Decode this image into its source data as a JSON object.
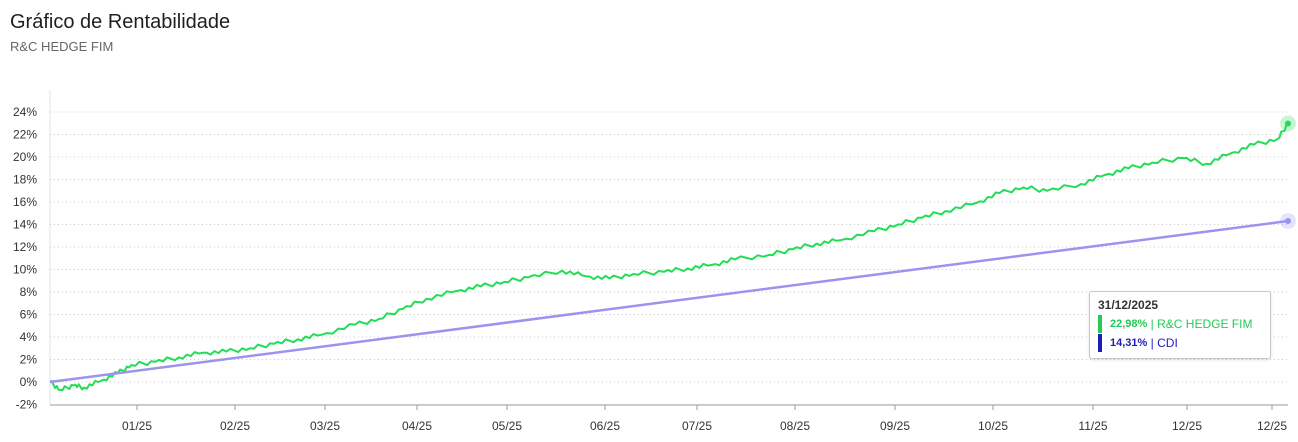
{
  "header": {
    "title": "Gráfico de Rentabilidade",
    "subtitle": "R&C HEDGE FIM"
  },
  "tooltip": {
    "date": "31/12/2025",
    "rows": [
      {
        "value": "22,98%",
        "sep": " | ",
        "name": "R&C HEDGE FIM",
        "color": "#22cc55"
      },
      {
        "value": "14,31%",
        "sep": " | ",
        "name": "CDI",
        "color": "#1d1db8"
      }
    ]
  },
  "chart_data": {
    "type": "line",
    "y_ticks": [
      "24%",
      "22%",
      "20%",
      "18%",
      "16%",
      "14%",
      "12%",
      "10%",
      "8%",
      "6%",
      "4%",
      "2%",
      "0%",
      "-2%"
    ],
    "x_ticks": [
      "01/25",
      "02/25",
      "03/25",
      "04/25",
      "05/25",
      "06/25",
      "07/25",
      "08/25",
      "09/25",
      "10/25",
      "11/25",
      "12/25",
      "12/25"
    ],
    "ylim": [
      -2,
      24
    ],
    "grid": true,
    "series": [
      {
        "name": "R&C HEDGE FIM",
        "color": "#22dd55",
        "points": [
          [
            "2024-12-31",
            0.0
          ],
          [
            "2025-01-03",
            -0.7
          ],
          [
            "2025-01-07",
            -0.3
          ],
          [
            "2025-01-10",
            -0.5
          ],
          [
            "2025-01-15",
            0.1
          ],
          [
            "2025-01-20",
            0.8
          ],
          [
            "2025-01-24",
            1.5
          ],
          [
            "2025-01-31",
            1.8
          ],
          [
            "2025-02-07",
            2.2
          ],
          [
            "2025-02-14",
            2.6
          ],
          [
            "2025-02-21",
            2.7
          ],
          [
            "2025-02-28",
            3.0
          ],
          [
            "2025-03-07",
            3.4
          ],
          [
            "2025-03-14",
            3.8
          ],
          [
            "2025-03-21",
            4.2
          ],
          [
            "2025-03-31",
            5.1
          ],
          [
            "2025-04-07",
            5.6
          ],
          [
            "2025-04-14",
            6.5
          ],
          [
            "2025-04-21",
            7.4
          ],
          [
            "2025-04-30",
            8.1
          ],
          [
            "2025-05-07",
            8.5
          ],
          [
            "2025-05-14",
            8.9
          ],
          [
            "2025-05-21",
            9.3
          ],
          [
            "2025-05-31",
            9.9
          ],
          [
            "2025-06-07",
            9.4
          ],
          [
            "2025-06-14",
            9.2
          ],
          [
            "2025-06-21",
            9.6
          ],
          [
            "2025-06-30",
            9.8
          ],
          [
            "2025-07-07",
            10.1
          ],
          [
            "2025-07-14",
            10.4
          ],
          [
            "2025-07-21",
            10.9
          ],
          [
            "2025-07-31",
            11.3
          ],
          [
            "2025-08-07",
            11.8
          ],
          [
            "2025-08-14",
            12.3
          ],
          [
            "2025-08-21",
            12.6
          ],
          [
            "2025-08-31",
            13.4
          ],
          [
            "2025-09-07",
            14.0
          ],
          [
            "2025-09-14",
            14.6
          ],
          [
            "2025-09-21",
            15.2
          ],
          [
            "2025-09-30",
            15.9
          ],
          [
            "2025-10-07",
            16.8
          ],
          [
            "2025-10-14",
            17.3
          ],
          [
            "2025-10-21",
            17.0
          ],
          [
            "2025-10-31",
            17.6
          ],
          [
            "2025-11-07",
            18.4
          ],
          [
            "2025-11-14",
            19.0
          ],
          [
            "2025-11-21",
            19.5
          ],
          [
            "2025-11-30",
            19.9
          ],
          [
            "2025-12-07",
            19.4
          ],
          [
            "2025-12-14",
            20.3
          ],
          [
            "2025-12-21",
            21.1
          ],
          [
            "2025-12-28",
            21.6
          ],
          [
            "2025-12-31",
            22.98
          ]
        ]
      },
      {
        "name": "CDI",
        "color": "#9b94ee",
        "points": [
          [
            "2024-12-31",
            0.0
          ],
          [
            "2025-12-31",
            14.31
          ]
        ]
      }
    ]
  }
}
